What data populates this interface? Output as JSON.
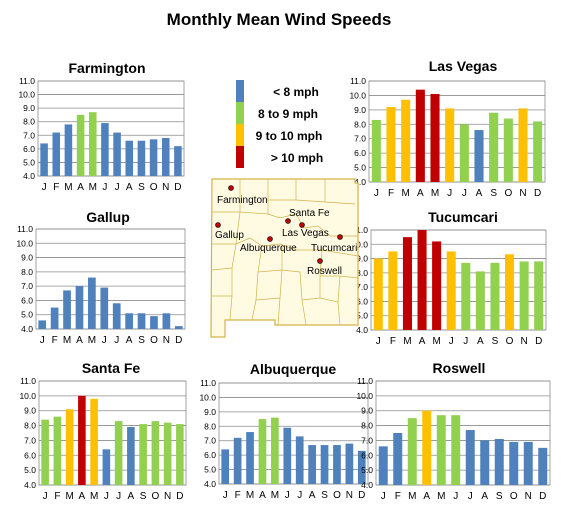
{
  "title": "Monthly Mean Wind Speeds",
  "months": [
    "J",
    "F",
    "M",
    "A",
    "M",
    "J",
    "J",
    "A",
    "S",
    "O",
    "N",
    "D"
  ],
  "yticks": [
    "4.0",
    "5.0",
    "6.0",
    "7.0",
    "8.0",
    "9.0",
    "10.0",
    "11.0"
  ],
  "legend": [
    {
      "label": "< 8 mph",
      "color": "#4F81BD"
    },
    {
      "label": "8 to 9 mph",
      "color": "#92D050"
    },
    {
      "label": "9 to 10 mph",
      "color": "#FFC000"
    },
    {
      "label": "> 10 mph",
      "color": "#C00000"
    }
  ],
  "map": {
    "fill": "#FFFBE3",
    "border": "#D4B24A",
    "city_marker_color": "#C00000",
    "cities": [
      "Farmington",
      "Santa Fe",
      "Las Vegas",
      "Gallup",
      "Albuquerque",
      "Tucumcari",
      "Roswell"
    ]
  },
  "chart_data": [
    {
      "type": "bar",
      "title": "Farmington",
      "categories": [
        "J",
        "F",
        "M",
        "A",
        "M",
        "J",
        "J",
        "A",
        "S",
        "O",
        "N",
        "D"
      ],
      "values": [
        6.4,
        7.2,
        7.8,
        8.5,
        8.7,
        7.9,
        7.2,
        6.6,
        6.6,
        6.7,
        6.8,
        6.2
      ],
      "ylim": [
        4,
        11
      ]
    },
    {
      "type": "bar",
      "title": "Las Vegas",
      "categories": [
        "J",
        "F",
        "M",
        "A",
        "M",
        "J",
        "J",
        "A",
        "S",
        "O",
        "N",
        "D"
      ],
      "values": [
        8.3,
        9.2,
        9.7,
        10.4,
        10.1,
        9.1,
        8.0,
        7.6,
        8.8,
        8.4,
        9.1,
        8.2
      ],
      "ylim": [
        4,
        11
      ]
    },
    {
      "type": "bar",
      "title": "Gallup",
      "categories": [
        "J",
        "F",
        "M",
        "A",
        "M",
        "J",
        "J",
        "A",
        "S",
        "O",
        "N",
        "D"
      ],
      "values": [
        4.6,
        5.5,
        6.7,
        7.0,
        7.6,
        6.9,
        5.8,
        5.1,
        5.1,
        4.9,
        5.1,
        4.2
      ],
      "ylim": [
        4,
        11
      ]
    },
    {
      "type": "bar",
      "title": "Tucumcari",
      "categories": [
        "J",
        "F",
        "M",
        "A",
        "M",
        "J",
        "J",
        "A",
        "S",
        "O",
        "N",
        "D"
      ],
      "values": [
        9.0,
        9.5,
        10.5,
        11.0,
        10.2,
        9.5,
        8.7,
        8.1,
        8.7,
        9.3,
        8.8,
        8.8
      ],
      "ylim": [
        4,
        11
      ]
    },
    {
      "type": "bar",
      "title": "Santa Fe",
      "categories": [
        "J",
        "F",
        "M",
        "A",
        "M",
        "J",
        "J",
        "A",
        "S",
        "O",
        "N",
        "D"
      ],
      "values": [
        8.4,
        8.6,
        9.1,
        10.0,
        9.8,
        6.4,
        8.3,
        7.9,
        8.1,
        8.3,
        8.2,
        8.1
      ],
      "ylim": [
        4,
        11
      ]
    },
    {
      "type": "bar",
      "title": "Albuquerque",
      "categories": [
        "J",
        "F",
        "M",
        "A",
        "M",
        "J",
        "J",
        "A",
        "S",
        "O",
        "N",
        "D"
      ],
      "values": [
        6.4,
        7.2,
        7.6,
        8.5,
        8.6,
        7.9,
        7.3,
        6.7,
        6.7,
        6.7,
        6.8,
        6.3
      ],
      "ylim": [
        4,
        11
      ]
    },
    {
      "type": "bar",
      "title": "Roswell",
      "categories": [
        "J",
        "F",
        "M",
        "A",
        "M",
        "J",
        "J",
        "A",
        "S",
        "O",
        "N",
        "D"
      ],
      "values": [
        6.6,
        7.5,
        8.5,
        9.0,
        8.7,
        8.7,
        7.7,
        7.0,
        7.1,
        6.9,
        6.9,
        6.5
      ],
      "ylim": [
        4,
        11
      ]
    }
  ]
}
